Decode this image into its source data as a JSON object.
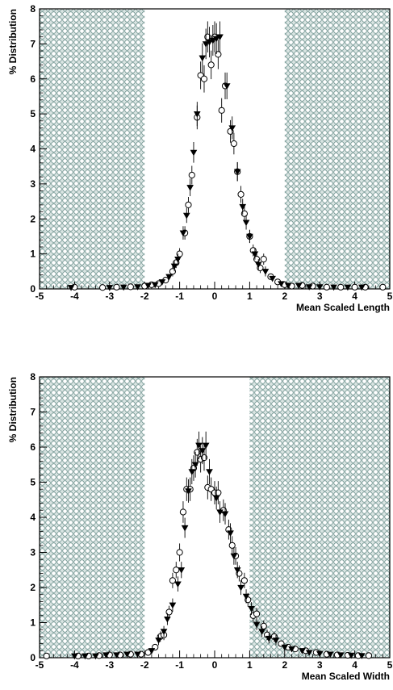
{
  "chart_data": [
    {
      "type": "scatter",
      "xlabel": "Mean Scaled Length",
      "ylabel": "% Distribution",
      "xlim": [
        -5,
        5
      ],
      "ylim": [
        0,
        8
      ],
      "x_ticks": [
        "-5",
        "-4",
        "-3",
        "-2",
        "-1",
        "0",
        "1",
        "2",
        "3",
        "4",
        "5"
      ],
      "y_ticks": [
        "0",
        "1",
        "2",
        "3",
        "4",
        "5",
        "6",
        "7",
        "8"
      ],
      "excluded_regions": [
        [
          -5,
          -2
        ],
        [
          2,
          5
        ]
      ],
      "series": [
        {
          "marker": "open-circle",
          "points": [
            [
              -4.0,
              0.05
            ],
            [
              -3.2,
              0.04
            ],
            [
              -2.8,
              0.05
            ],
            [
              -2.4,
              0.06
            ],
            [
              -2.0,
              0.08
            ],
            [
              -1.8,
              0.12
            ],
            [
              -1.6,
              0.15
            ],
            [
              -1.4,
              0.25
            ],
            [
              -1.2,
              0.5
            ],
            [
              -1.1,
              0.75
            ],
            [
              -1.0,
              1.0
            ],
            [
              -0.85,
              1.6
            ],
            [
              -0.75,
              2.4
            ],
            [
              -0.65,
              3.25
            ],
            [
              -0.5,
              4.9
            ],
            [
              -0.4,
              6.1
            ],
            [
              -0.3,
              6.0
            ],
            [
              -0.2,
              7.2
            ],
            [
              -0.1,
              6.4
            ],
            [
              0.0,
              7.2
            ],
            [
              0.1,
              6.7
            ],
            [
              0.2,
              5.1
            ],
            [
              0.3,
              5.8
            ],
            [
              0.45,
              4.5
            ],
            [
              0.55,
              4.15
            ],
            [
              0.65,
              3.35
            ],
            [
              0.75,
              2.7
            ],
            [
              0.85,
              2.15
            ],
            [
              1.0,
              1.5
            ],
            [
              1.1,
              1.1
            ],
            [
              1.2,
              0.85
            ],
            [
              1.3,
              0.6
            ],
            [
              1.4,
              0.85
            ],
            [
              1.6,
              0.35
            ],
            [
              1.8,
              0.2
            ],
            [
              2.0,
              0.12
            ],
            [
              2.2,
              0.08
            ],
            [
              2.5,
              0.1
            ],
            [
              2.8,
              0.08
            ],
            [
              3.2,
              0.05
            ],
            [
              3.6,
              0.05
            ],
            [
              4.0,
              0.05
            ],
            [
              4.3,
              0.05
            ],
            [
              4.8,
              0.05
            ]
          ]
        },
        {
          "marker": "filled-triangle-down",
          "points": [
            [
              -4.1,
              0.04
            ],
            [
              -3.0,
              0.04
            ],
            [
              -2.6,
              0.05
            ],
            [
              -2.2,
              0.06
            ],
            [
              -1.9,
              0.1
            ],
            [
              -1.7,
              0.12
            ],
            [
              -1.5,
              0.2
            ],
            [
              -1.3,
              0.35
            ],
            [
              -1.15,
              0.65
            ],
            [
              -1.05,
              0.85
            ],
            [
              -0.9,
              1.6
            ],
            [
              -0.8,
              2.1
            ],
            [
              -0.7,
              2.9
            ],
            [
              -0.6,
              3.9
            ],
            [
              -0.5,
              5.0
            ],
            [
              -0.35,
              6.6
            ],
            [
              -0.25,
              7.0
            ],
            [
              -0.15,
              7.05
            ],
            [
              -0.05,
              7.1
            ],
            [
              0.05,
              7.15
            ],
            [
              0.15,
              7.2
            ],
            [
              0.35,
              5.8
            ],
            [
              0.5,
              4.6
            ],
            [
              0.65,
              3.35
            ],
            [
              0.8,
              2.35
            ],
            [
              0.9,
              1.9
            ],
            [
              1.0,
              1.5
            ],
            [
              1.15,
              1.0
            ],
            [
              1.25,
              0.7
            ],
            [
              1.45,
              0.5
            ],
            [
              1.65,
              0.3
            ],
            [
              1.9,
              0.15
            ],
            [
              2.1,
              0.1
            ],
            [
              2.4,
              0.1
            ],
            [
              2.7,
              0.06
            ],
            [
              3.0,
              0.06
            ],
            [
              3.4,
              0.05
            ],
            [
              3.8,
              0.05
            ],
            [
              4.2,
              0.05
            ]
          ]
        }
      ]
    },
    {
      "type": "scatter",
      "xlabel": "Mean Scaled Width",
      "ylabel": "% Distribution",
      "xlim": [
        -5,
        5
      ],
      "ylim": [
        0,
        8
      ],
      "x_ticks": [
        "-5",
        "-4",
        "-3",
        "-2",
        "-1",
        "0",
        "1",
        "2",
        "3",
        "4",
        "5"
      ],
      "y_ticks": [
        "0",
        "1",
        "2",
        "3",
        "4",
        "5",
        "6",
        "7",
        "8"
      ],
      "excluded_regions": [
        [
          -5,
          -2
        ],
        [
          1,
          5
        ]
      ],
      "series": [
        {
          "marker": "open-circle",
          "points": [
            [
              -4.8,
              0.05
            ],
            [
              -3.9,
              0.05
            ],
            [
              -3.6,
              0.05
            ],
            [
              -3.3,
              0.06
            ],
            [
              -3.0,
              0.08
            ],
            [
              -2.7,
              0.08
            ],
            [
              -2.4,
              0.1
            ],
            [
              -2.1,
              0.1
            ],
            [
              -1.9,
              0.15
            ],
            [
              -1.7,
              0.3
            ],
            [
              -1.55,
              0.6
            ],
            [
              -1.45,
              0.65
            ],
            [
              -1.3,
              1.3
            ],
            [
              -1.2,
              2.2
            ],
            [
              -1.1,
              2.5
            ],
            [
              -1.0,
              3.0
            ],
            [
              -0.9,
              4.15
            ],
            [
              -0.8,
              4.8
            ],
            [
              -0.7,
              4.8
            ],
            [
              -0.6,
              5.4
            ],
            [
              -0.5,
              5.85
            ],
            [
              -0.4,
              5.65
            ],
            [
              -0.3,
              5.7
            ],
            [
              -0.2,
              4.85
            ],
            [
              -0.1,
              4.8
            ],
            [
              0.0,
              4.7
            ],
            [
              0.1,
              4.7
            ],
            [
              0.25,
              4.2
            ],
            [
              0.4,
              3.65
            ],
            [
              0.5,
              3.2
            ],
            [
              0.6,
              2.9
            ],
            [
              0.7,
              2.4
            ],
            [
              0.85,
              2.2
            ],
            [
              0.95,
              1.65
            ],
            [
              1.1,
              1.2
            ],
            [
              1.2,
              1.25
            ],
            [
              1.4,
              0.9
            ],
            [
              1.5,
              0.65
            ],
            [
              1.7,
              0.6
            ],
            [
              1.9,
              0.4
            ],
            [
              2.1,
              0.3
            ],
            [
              2.3,
              0.25
            ],
            [
              2.6,
              0.2
            ],
            [
              2.9,
              0.15
            ],
            [
              3.2,
              0.1
            ],
            [
              3.5,
              0.08
            ],
            [
              3.8,
              0.07
            ],
            [
              4.1,
              0.06
            ],
            [
              4.4,
              0.06
            ]
          ]
        },
        {
          "marker": "filled-triangle-down",
          "points": [
            [
              -4.0,
              0.05
            ],
            [
              -3.7,
              0.05
            ],
            [
              -3.4,
              0.05
            ],
            [
              -3.1,
              0.08
            ],
            [
              -2.8,
              0.08
            ],
            [
              -2.5,
              0.1
            ],
            [
              -2.2,
              0.1
            ],
            [
              -1.8,
              0.2
            ],
            [
              -1.6,
              0.5
            ],
            [
              -1.45,
              0.75
            ],
            [
              -1.35,
              1.1
            ],
            [
              -1.2,
              1.5
            ],
            [
              -1.05,
              2.1
            ],
            [
              -0.95,
              2.5
            ],
            [
              -0.85,
              3.7
            ],
            [
              -0.75,
              4.75
            ],
            [
              -0.65,
              5.3
            ],
            [
              -0.55,
              5.5
            ],
            [
              -0.45,
              6.05
            ],
            [
              -0.35,
              5.9
            ],
            [
              -0.25,
              6.05
            ],
            [
              -0.15,
              5.3
            ],
            [
              0.05,
              4.55
            ],
            [
              0.15,
              4.15
            ],
            [
              0.3,
              4.1
            ],
            [
              0.45,
              3.55
            ],
            [
              0.55,
              2.9
            ],
            [
              0.65,
              2.5
            ],
            [
              0.75,
              2.0
            ],
            [
              0.9,
              1.75
            ],
            [
              1.05,
              1.4
            ],
            [
              1.2,
              0.95
            ],
            [
              1.35,
              0.75
            ],
            [
              1.55,
              0.55
            ],
            [
              1.75,
              0.5
            ],
            [
              2.0,
              0.3
            ],
            [
              2.2,
              0.25
            ],
            [
              2.5,
              0.2
            ],
            [
              2.7,
              0.15
            ],
            [
              3.0,
              0.12
            ],
            [
              3.3,
              0.1
            ],
            [
              3.6,
              0.08
            ],
            [
              3.9,
              0.07
            ],
            [
              4.2,
              0.06
            ]
          ]
        }
      ]
    }
  ]
}
